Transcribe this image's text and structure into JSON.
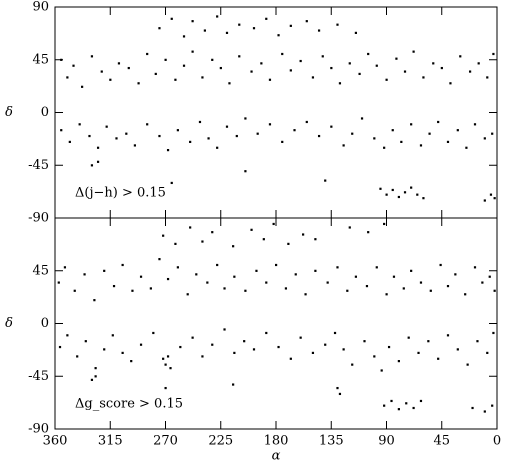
{
  "chart_data": [
    {
      "type": "scatter",
      "annotation": "Δ(j−h) > 0.15",
      "ylabel": "δ",
      "color": "#000000",
      "xlim": [
        360,
        0
      ],
      "ylim": [
        -90,
        90
      ],
      "xticks": [
        360,
        315,
        270,
        225,
        180,
        135,
        90,
        45,
        0
      ],
      "yticks": [
        -90,
        -45,
        0,
        45,
        90
      ],
      "xtick_labels": false,
      "x": [
        355,
        350,
        345,
        338,
        330,
        322,
        315,
        308,
        300,
        292,
        285,
        278,
        270,
        262,
        255,
        248,
        240,
        232,
        225,
        218,
        210,
        200,
        192,
        185,
        175,
        168,
        160,
        150,
        142,
        135,
        128,
        120,
        112,
        105,
        98,
        90,
        82,
        75,
        68,
        60,
        52,
        45,
        38,
        30,
        22,
        15,
        8,
        3,
        275,
        265,
        255,
        248,
        238,
        228,
        220,
        210,
        198,
        188,
        178,
        168,
        155,
        145,
        130,
        115,
        355,
        348,
        340,
        332,
        325,
        318,
        310,
        302,
        295,
        285,
        275,
        268,
        260,
        250,
        242,
        235,
        228,
        220,
        212,
        205,
        195,
        185,
        175,
        165,
        155,
        145,
        135,
        125,
        118,
        110,
        100,
        92,
        85,
        78,
        70,
        62,
        55,
        48,
        40,
        32,
        25,
        18,
        10,
        4,
        330,
        325,
        265,
        205,
        140,
        95,
        90,
        85,
        80,
        75,
        70,
        65,
        60,
        10,
        5,
        2
      ],
      "y": [
        45,
        30,
        40,
        22,
        48,
        35,
        28,
        42,
        38,
        25,
        50,
        33,
        45,
        28,
        40,
        52,
        30,
        45,
        38,
        25,
        48,
        35,
        42,
        28,
        50,
        36,
        44,
        30,
        48,
        38,
        25,
        42,
        33,
        50,
        40,
        28,
        46,
        35,
        52,
        30,
        42,
        38,
        25,
        48,
        35,
        42,
        30,
        50,
        72,
        80,
        65,
        78,
        70,
        82,
        68,
        75,
        72,
        80,
        66,
        74,
        78,
        70,
        75,
        68,
        -15,
        -25,
        -10,
        -20,
        -30,
        -12,
        -22,
        -18,
        -28,
        -10,
        -20,
        -32,
        -15,
        -25,
        -8,
        -22,
        -30,
        -12,
        -20,
        -5,
        -18,
        -10,
        -25,
        -15,
        -8,
        -20,
        -12,
        -28,
        -18,
        -5,
        -22,
        -30,
        -15,
        -25,
        -10,
        -28,
        -18,
        -8,
        -25,
        -15,
        -30,
        -10,
        -22,
        -18,
        -45,
        -42,
        -60,
        -50,
        -58,
        -65,
        -70,
        -66,
        -72,
        -68,
        -64,
        -70,
        -73,
        -75,
        -70,
        -73
      ]
    },
    {
      "type": "scatter",
      "annotation": "Δg_score > 0.15",
      "xlabel": "α",
      "ylabel": "δ",
      "color": "#000000",
      "xlim": [
        360,
        0
      ],
      "ylim": [
        -90,
        90
      ],
      "xticks": [
        360,
        315,
        270,
        225,
        180,
        135,
        90,
        45,
        0
      ],
      "yticks": [
        -90,
        -45,
        0,
        45
      ],
      "xtick_labels": true,
      "x": [
        357,
        352,
        344,
        336,
        328,
        320,
        312,
        305,
        297,
        290,
        282,
        275,
        268,
        260,
        252,
        245,
        236,
        228,
        222,
        214,
        205,
        196,
        188,
        180,
        172,
        164,
        156,
        148,
        138,
        130,
        122,
        115,
        106,
        98,
        90,
        84,
        76,
        70,
        62,
        54,
        46,
        40,
        34,
        26,
        18,
        12,
        6,
        2,
        272,
        262,
        250,
        240,
        232,
        215,
        200,
        190,
        182,
        170,
        158,
        148,
        120,
        105,
        92,
        356,
        350,
        342,
        335,
        327,
        320,
        313,
        305,
        298,
        290,
        280,
        272,
        270,
        268,
        266,
        258,
        248,
        240,
        232,
        222,
        214,
        206,
        198,
        188,
        178,
        168,
        160,
        150,
        140,
        132,
        125,
        118,
        108,
        100,
        94,
        88,
        80,
        72,
        64,
        56,
        48,
        40,
        32,
        24,
        16,
        8,
        3,
        330,
        327,
        270,
        215,
        130,
        128,
        92,
        86,
        80,
        74,
        68,
        62,
        20,
        10,
        4
      ],
      "y": [
        35,
        48,
        28,
        42,
        20,
        45,
        32,
        50,
        28,
        40,
        30,
        55,
        38,
        48,
        25,
        42,
        35,
        50,
        30,
        40,
        28,
        45,
        35,
        50,
        30,
        42,
        25,
        45,
        35,
        48,
        28,
        40,
        32,
        48,
        25,
        40,
        30,
        45,
        35,
        28,
        50,
        32,
        42,
        25,
        48,
        35,
        40,
        28,
        75,
        68,
        82,
        70,
        78,
        66,
        80,
        72,
        85,
        68,
        76,
        72,
        82,
        78,
        85,
        -20,
        -10,
        -28,
        -15,
        -38,
        -22,
        -10,
        -25,
        -32,
        -18,
        -8,
        -30,
        -35,
        -28,
        -38,
        -20,
        -12,
        -28,
        -18,
        -5,
        -25,
        -15,
        -22,
        -8,
        -20,
        -30,
        -12,
        -25,
        -18,
        -8,
        -22,
        -35,
        -15,
        -28,
        -40,
        -20,
        -32,
        -12,
        -25,
        -15,
        -30,
        -10,
        -22,
        -35,
        -15,
        -25,
        -8,
        -48,
        -45,
        -55,
        -52,
        -55,
        -60,
        -70,
        -66,
        -73,
        -68,
        -72,
        -66,
        -72,
        -75,
        -70
      ]
    }
  ]
}
